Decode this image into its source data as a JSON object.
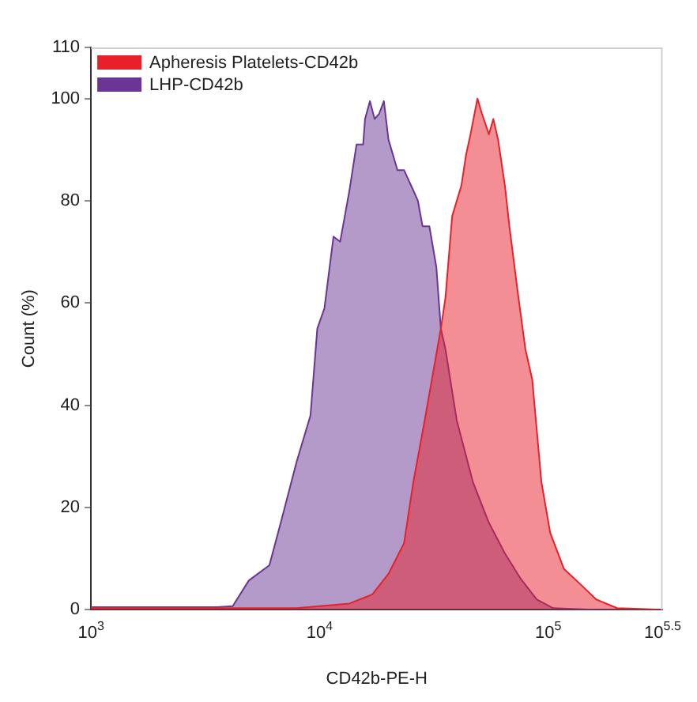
{
  "chart_data": {
    "type": "area",
    "xlabel": "CD42b-PE-H",
    "ylabel": "Count (%)",
    "log": "x",
    "xlim": [
      1000,
      316228
    ],
    "xticks": [
      {
        "value": 1000,
        "label": "10$^{3}$"
      },
      {
        "value": 10000,
        "label": "10$^{4}$"
      },
      {
        "value": 100000,
        "label": "10$^{5}$"
      },
      {
        "value": 316228,
        "label": "10$^{5.5}$"
      }
    ],
    "ylim": [
      0,
      110
    ],
    "yticks": [
      0,
      20,
      40,
      60,
      80,
      100,
      110
    ],
    "grid": false,
    "legend": "top left",
    "series": [
      {
        "name": "Apheresis Platelets-CD42b",
        "color": "#e8202a",
        "x": [
          1000,
          7940,
          13500,
          17000,
          20000,
          23400,
          25700,
          28800,
          32400,
          33900,
          35500,
          38000,
          41700,
          43700,
          45700,
          49000,
          51300,
          55000,
          57500,
          60300,
          64600,
          67600,
          74100,
          79400,
          85100,
          93300,
          102000,
          117000,
          138000,
          162000,
          200000,
          316000
        ],
        "values": [
          0.3,
          0.3,
          1.2,
          3,
          7,
          13,
          25,
          37,
          50,
          55,
          61,
          77,
          83,
          89,
          93,
          100,
          97,
          93,
          96,
          92,
          83,
          75,
          61,
          51,
          45,
          25,
          15,
          8,
          5,
          2,
          0.3,
          0
        ]
      },
      {
        "name": "LHP-CD42b",
        "color": "#6a3594",
        "x": [
          1000,
          3550,
          4170,
          4900,
          6030,
          6760,
          7940,
          9120,
          9770,
          10500,
          11500,
          12300,
          13500,
          14500,
          15500,
          15800,
          16600,
          17400,
          18200,
          19100,
          20000,
          21900,
          23400,
          25700,
          26900,
          28200,
          30200,
          32400,
          33900,
          35500,
          39800,
          46800,
          55000,
          64600,
          75900,
          89100,
          105000,
          158000,
          316000
        ],
        "values": [
          0.5,
          0.5,
          0.7,
          5.7,
          8.7,
          17,
          29,
          38,
          55,
          59,
          73,
          72,
          82,
          91,
          91,
          96,
          99.5,
          96,
          97,
          99.5,
          92,
          86,
          86,
          82,
          80,
          75,
          75,
          67,
          55,
          51,
          37,
          25,
          17,
          11,
          6,
          2,
          0.3,
          0,
          0
        ]
      }
    ]
  }
}
